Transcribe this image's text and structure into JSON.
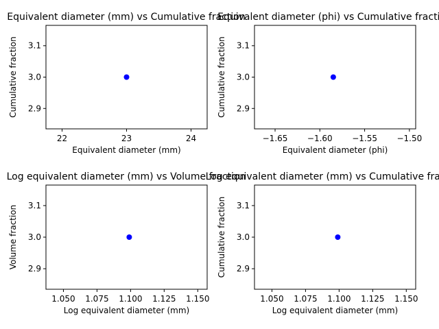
{
  "chart_data": [
    {
      "type": "scatter",
      "title": "Equivalent diameter (mm) vs Cumulative fraction",
      "xlabel": "Equivalent diameter (mm)",
      "ylabel": "Cumulative fraction",
      "xlim": [
        21.75,
        24.25
      ],
      "ylim": [
        2.835,
        3.165
      ],
      "xticks": [
        22,
        23,
        24
      ],
      "xtick_labels": [
        "22",
        "23",
        "24"
      ],
      "yticks": [
        2.9,
        3.0,
        3.1
      ],
      "ytick_labels": [
        "2.9",
        "3.0",
        "3.1"
      ],
      "points": [
        {
          "x": 23.0,
          "y": 3.0
        }
      ],
      "marker_color": "#0000ff",
      "grid": false
    },
    {
      "type": "scatter",
      "title": "Equivalent diameter (phi) vs Cumulative fraction",
      "xlabel": "Equivalent diameter (phi)",
      "ylabel": "Cumulative fraction",
      "xlim": [
        -1.673,
        -1.493
      ],
      "ylim": [
        2.835,
        3.165
      ],
      "xticks": [
        -1.65,
        -1.6,
        -1.55,
        -1.5
      ],
      "xtick_labels": [
        "−1.65",
        "−1.60",
        "−1.55",
        "−1.50"
      ],
      "yticks": [
        2.9,
        3.0,
        3.1
      ],
      "ytick_labels": [
        "2.9",
        "3.0",
        "3.1"
      ],
      "points": [
        {
          "x": -1.585,
          "y": 3.0
        }
      ],
      "marker_color": "#0000ff",
      "grid": false
    },
    {
      "type": "scatter",
      "title": "Log equivalent diameter (mm) vs Volume fraction",
      "xlabel": "Log equivalent diameter (mm)",
      "ylabel": "Volume fraction",
      "xlim": [
        1.037,
        1.157
      ],
      "ylim": [
        2.835,
        3.165
      ],
      "xticks": [
        1.05,
        1.075,
        1.1,
        1.125,
        1.15
      ],
      "xtick_labels": [
        "1.050",
        "1.075",
        "1.100",
        "1.125",
        "1.150"
      ],
      "yticks": [
        2.9,
        3.0,
        3.1
      ],
      "ytick_labels": [
        "2.9",
        "3.0",
        "3.1"
      ],
      "points": [
        {
          "x": 1.099,
          "y": 3.0
        }
      ],
      "marker_color": "#0000ff",
      "grid": false
    },
    {
      "type": "scatter",
      "title": "Log equivalent diameter (mm) vs Cumulative fraction",
      "xlabel": "Log equivalent diameter (mm)",
      "ylabel": "Cumulative fraction",
      "xlim": [
        1.037,
        1.157
      ],
      "ylim": [
        2.835,
        3.165
      ],
      "xticks": [
        1.05,
        1.075,
        1.1,
        1.125,
        1.15
      ],
      "xtick_labels": [
        "1.050",
        "1.075",
        "1.100",
        "1.125",
        "1.150"
      ],
      "yticks": [
        2.9,
        3.0,
        3.1
      ],
      "ytick_labels": [
        "2.9",
        "3.0",
        "3.1"
      ],
      "points": [
        {
          "x": 1.099,
          "y": 3.0
        }
      ],
      "marker_color": "#0000ff",
      "grid": false
    }
  ]
}
